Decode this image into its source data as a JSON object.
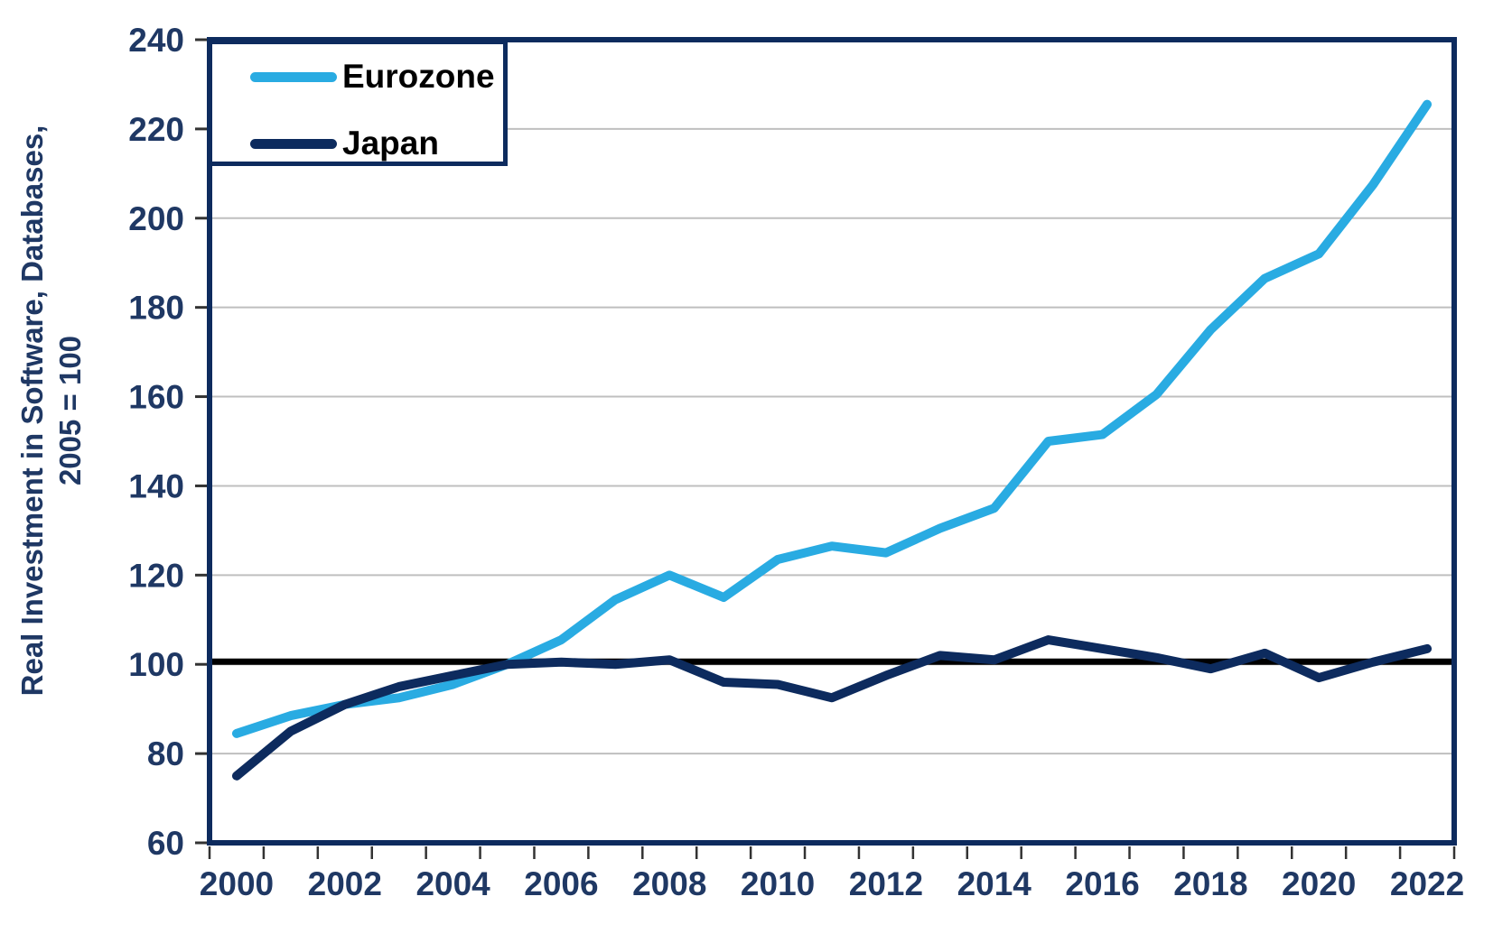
{
  "figure": {
    "kind": "line-chart-figure",
    "background": "#FFFFFF"
  },
  "colors": {
    "eurozone_line": "#29ABE2",
    "japan_line": "#0D2B5E",
    "frame": "#0D2B5E",
    "axis_label_text": "#1F3864",
    "legend_text": "#000000",
    "gridline": "#BFBFBF",
    "reference_line": "#000000",
    "tick_mark": "#333333"
  },
  "legend": {
    "items": [
      {
        "label": "Eurozone",
        "color": "#29ABE2"
      },
      {
        "label": "Japan",
        "color": "#0D2B5E"
      }
    ]
  },
  "y_axis": {
    "title_line1": "Real Investment in Software, Databases,",
    "title_line2": "2005 = 100",
    "ticks": [
      60,
      80,
      100,
      120,
      140,
      160,
      180,
      200,
      220,
      240
    ],
    "min": 60,
    "max": 240
  },
  "x_axis": {
    "tick_labels": [
      "2000",
      "2002",
      "2004",
      "2006",
      "2008",
      "2010",
      "2012",
      "2014",
      "2016",
      "2018",
      "2020",
      "2022"
    ]
  },
  "chart_data": {
    "type": "line",
    "title": "",
    "ylabel": "Real Investment in Software, Databases, 2005 = 100",
    "xlabel": "",
    "ylim": [
      60,
      240
    ],
    "grid": true,
    "legend_position": "top-left",
    "x": [
      2000,
      2001,
      2002,
      2003,
      2004,
      2005,
      2006,
      2007,
      2008,
      2009,
      2010,
      2011,
      2012,
      2013,
      2014,
      2015,
      2016,
      2017,
      2018,
      2019,
      2020,
      2021,
      2022
    ],
    "series": [
      {
        "name": "Eurozone",
        "color": "#29ABE2",
        "values": [
          84.5,
          88.5,
          91,
          92.5,
          95.5,
          100,
          105.5,
          114.5,
          120,
          115,
          123.5,
          126.5,
          125,
          130.5,
          135,
          150,
          151.5,
          160.5,
          175,
          186.5,
          192,
          207.5,
          225.5
        ]
      },
      {
        "name": "Japan",
        "color": "#0D2B5E",
        "values": [
          75,
          85,
          91,
          95,
          97.5,
          100,
          100.5,
          100,
          101,
          96,
          95.5,
          92.5,
          97.5,
          102,
          101,
          105.5,
          103.5,
          101.5,
          99,
          102.5,
          97,
          100.5,
          103.5
        ]
      }
    ],
    "reference_line": {
      "value": 100,
      "color": "#000000"
    }
  }
}
